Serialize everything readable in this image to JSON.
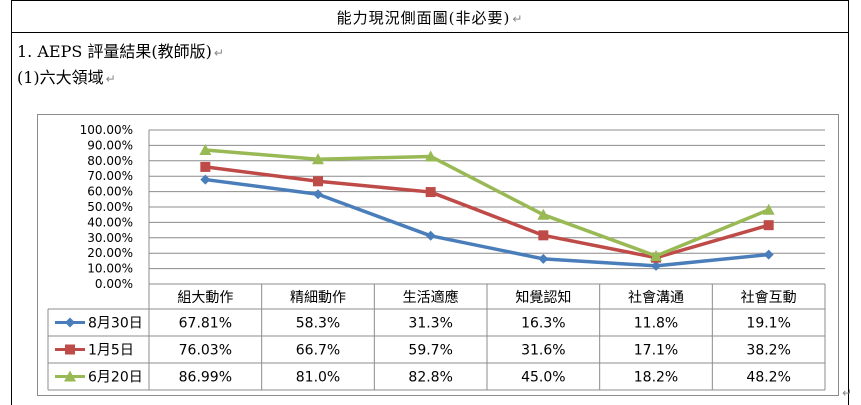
{
  "header": {
    "title": "能力現況側面圖(非必要)"
  },
  "section": {
    "title": "1. AEPS 評量結果(教師版)"
  },
  "subsection": {
    "title": "(1)六大領域"
  },
  "return_mark": "↵",
  "chart_data": {
    "type": "line",
    "categories": [
      "組大動作",
      "精細動作",
      "生活適應",
      "知覺認知",
      "社會溝通",
      "社會互動"
    ],
    "y_ticks": [
      "100.00%",
      "90.00%",
      "80.00%",
      "70.00%",
      "60.00%",
      "50.00%",
      "40.00%",
      "30.00%",
      "20.00%",
      "10.00%",
      "0.00%"
    ],
    "ylim": [
      0,
      100
    ],
    "grid": true,
    "legend": "table-left",
    "series": [
      {
        "name": "8月30日",
        "color": "#4a7ebb",
        "marker": "diamond",
        "values": [
          67.81,
          58.3,
          31.3,
          16.3,
          11.8,
          19.1
        ],
        "labels": [
          "67.81%",
          "58.3%",
          "31.3%",
          "16.3%",
          "11.8%",
          "19.1%"
        ]
      },
      {
        "name": "1月5日",
        "color": "#be4b48",
        "marker": "square",
        "values": [
          76.03,
          66.7,
          59.7,
          31.6,
          17.1,
          38.2
        ],
        "labels": [
          "76.03%",
          "66.7%",
          "59.7%",
          "31.6%",
          "17.1%",
          "38.2%"
        ]
      },
      {
        "name": "6月20日",
        "color": "#98b954",
        "marker": "triangle",
        "values": [
          86.99,
          81.0,
          82.8,
          45.0,
          18.2,
          48.2
        ],
        "labels": [
          "86.99%",
          "81.0%",
          "82.8%",
          "45.0%",
          "18.2%",
          "48.2%"
        ]
      }
    ]
  }
}
